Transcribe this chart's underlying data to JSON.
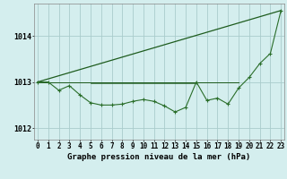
{
  "title": "Graphe pression niveau de la mer (hPa)",
  "hours": [
    0,
    1,
    2,
    3,
    4,
    5,
    6,
    7,
    8,
    9,
    10,
    11,
    12,
    13,
    14,
    15,
    16,
    17,
    18,
    19,
    20,
    21,
    22,
    23
  ],
  "series_diagonal": [
    1013.0,
    null,
    null,
    null,
    null,
    null,
    null,
    null,
    null,
    null,
    null,
    null,
    null,
    null,
    null,
    null,
    null,
    null,
    null,
    null,
    null,
    null,
    null,
    1014.55
  ],
  "series_flat1": [
    1013.0,
    1013.0,
    null,
    null,
    null,
    null,
    null,
    null,
    null,
    null,
    1013.0,
    null,
    null,
    null,
    null,
    1013.0,
    null,
    null,
    null,
    1013.1,
    null,
    1013.2,
    null,
    null
  ],
  "series_flat2": [
    null,
    null,
    null,
    null,
    null,
    1013.0,
    1013.0,
    1013.0,
    1013.0,
    1013.0,
    1013.0,
    1013.0,
    1013.0,
    1013.0,
    1013.0,
    1013.0,
    1013.0,
    1013.0,
    1013.0,
    null,
    null,
    null,
    null,
    null
  ],
  "series_zigzag": [
    1013.0,
    1013.0,
    1012.82,
    1012.92,
    1012.72,
    1012.55,
    1012.5,
    1012.5,
    1012.52,
    1012.58,
    1012.62,
    1012.58,
    1012.48,
    1012.35,
    1012.45,
    1013.0,
    1012.6,
    1012.65,
    1012.52,
    1012.87,
    1013.1,
    1013.4,
    1013.62,
    1014.55
  ],
  "ylim": [
    1011.75,
    1014.7
  ],
  "yticks": [
    1012,
    1013,
    1014
  ],
  "xlim": [
    -0.3,
    23.3
  ],
  "bg_color": "#d4eeee",
  "grid_color": "#aacccc",
  "dark_green": "#1e5c1e",
  "medium_green": "#2a6e2a",
  "title_fontsize": 6.5,
  "tick_fontsize": 5.5
}
